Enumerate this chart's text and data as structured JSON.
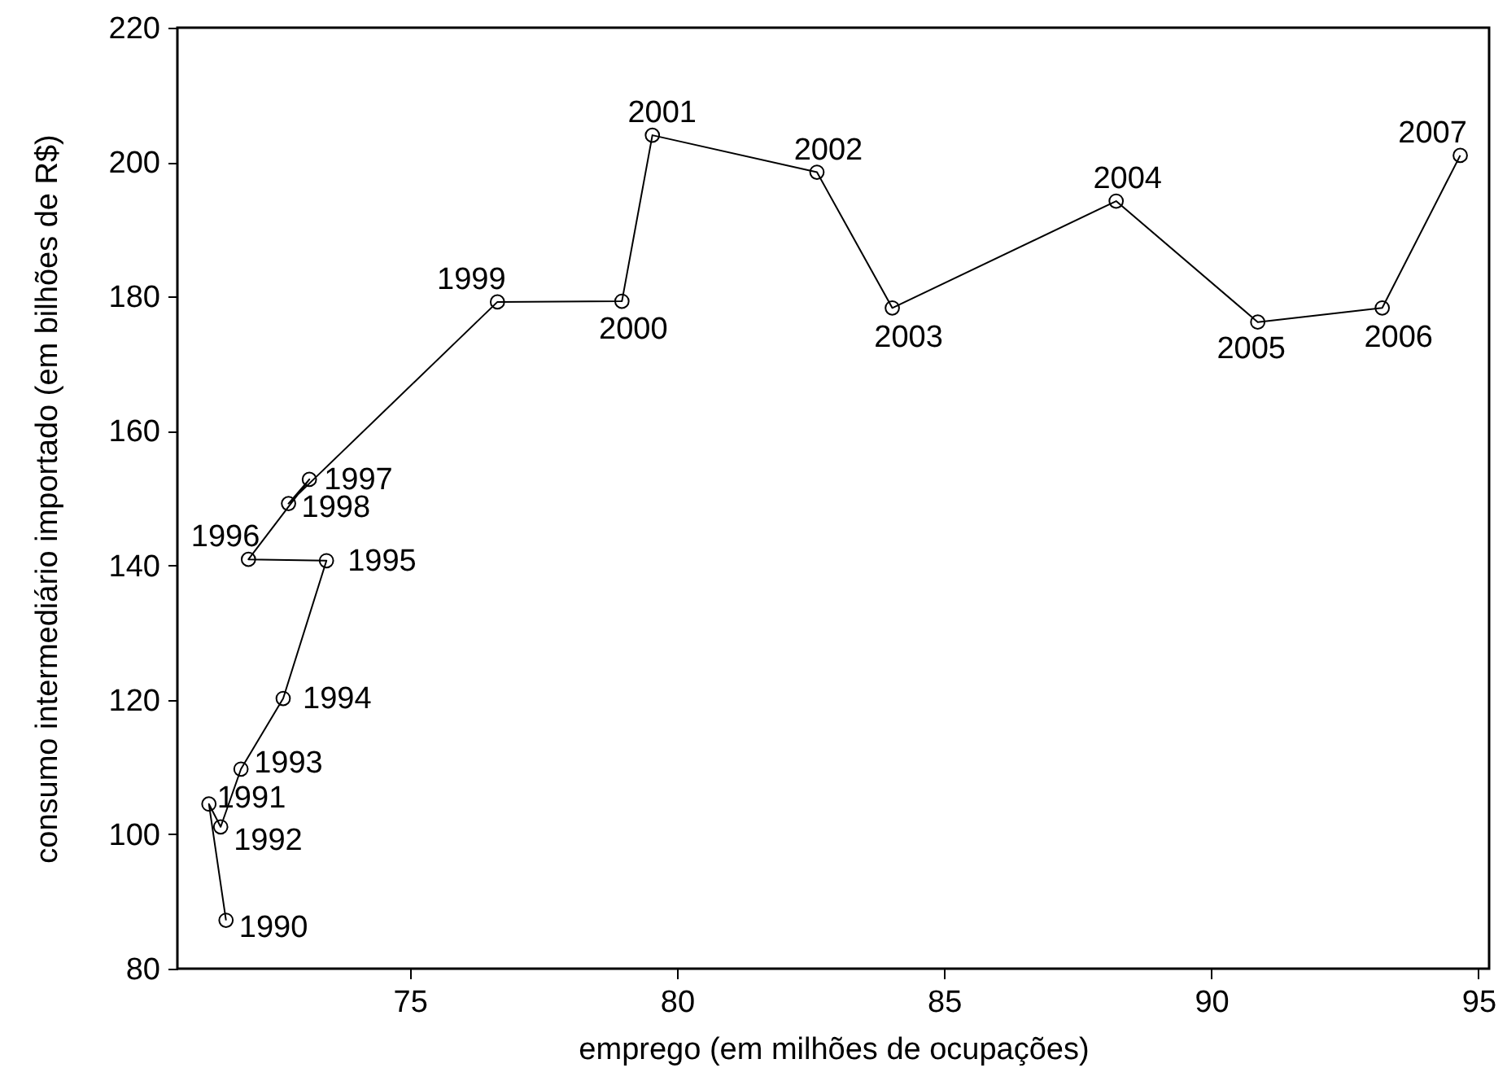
{
  "chart_data": {
    "type": "line",
    "xlabel": "emprego (em milhões de ocupações)",
    "ylabel": "consumo intermediário importado (em bilhões de R$)",
    "x": [
      71.56,
      71.24,
      71.46,
      71.84,
      72.63,
      73.44,
      71.98,
      73.12,
      72.73,
      76.64,
      78.97,
      79.54,
      82.62,
      84.03,
      88.22,
      90.87,
      93.2,
      94.66
    ],
    "series": [
      {
        "color": "#000000",
        "values": [
          87.2,
          104.5,
          101.1,
          109.7,
          120.2,
          140.7,
          140.9,
          152.8,
          149.2,
          179.2,
          179.3,
          204.0,
          198.5,
          178.3,
          194.2,
          176.2,
          178.3,
          201.0
        ]
      }
    ],
    "xlim": [
      70.65,
      95.2
    ],
    "xticks": [
      75,
      80,
      85,
      90,
      95
    ],
    "ylim": [
      80,
      220
    ],
    "yticks": [
      80,
      100,
      120,
      140,
      160,
      180,
      200,
      220
    ],
    "marker": "circle",
    "line_style": "solid",
    "annotations": [
      {
        "text": "1990",
        "x": 71.56,
        "y": 87.2
      },
      {
        "text": "1991",
        "x": 71.24,
        "y": 104.5
      },
      {
        "text": "1992",
        "x": 71.46,
        "y": 101.1
      },
      {
        "text": "1993",
        "x": 71.84,
        "y": 109.7
      },
      {
        "text": "1994",
        "x": 72.63,
        "y": 120.2
      },
      {
        "text": "1995",
        "x": 73.44,
        "y": 140.7
      },
      {
        "text": "1996",
        "x": 71.98,
        "y": 140.9
      },
      {
        "text": "1997",
        "x": 73.12,
        "y": 152.8
      },
      {
        "text": "1998",
        "x": 72.73,
        "y": 149.2
      },
      {
        "text": "1999",
        "x": 76.64,
        "y": 179.2
      },
      {
        "text": "2000",
        "x": 78.97,
        "y": 179.3
      },
      {
        "text": "2001",
        "x": 79.54,
        "y": 204.0
      },
      {
        "text": "2002",
        "x": 82.62,
        "y": 198.5
      },
      {
        "text": "2003",
        "x": 84.03,
        "y": 178.3
      },
      {
        "text": "2004",
        "x": 88.22,
        "y": 194.2
      },
      {
        "text": "2005",
        "x": 90.87,
        "y": 176.2
      },
      {
        "text": "2006",
        "x": 93.2,
        "y": 178.3
      },
      {
        "text": "2007",
        "x": 94.66,
        "y": 201.0
      }
    ]
  }
}
